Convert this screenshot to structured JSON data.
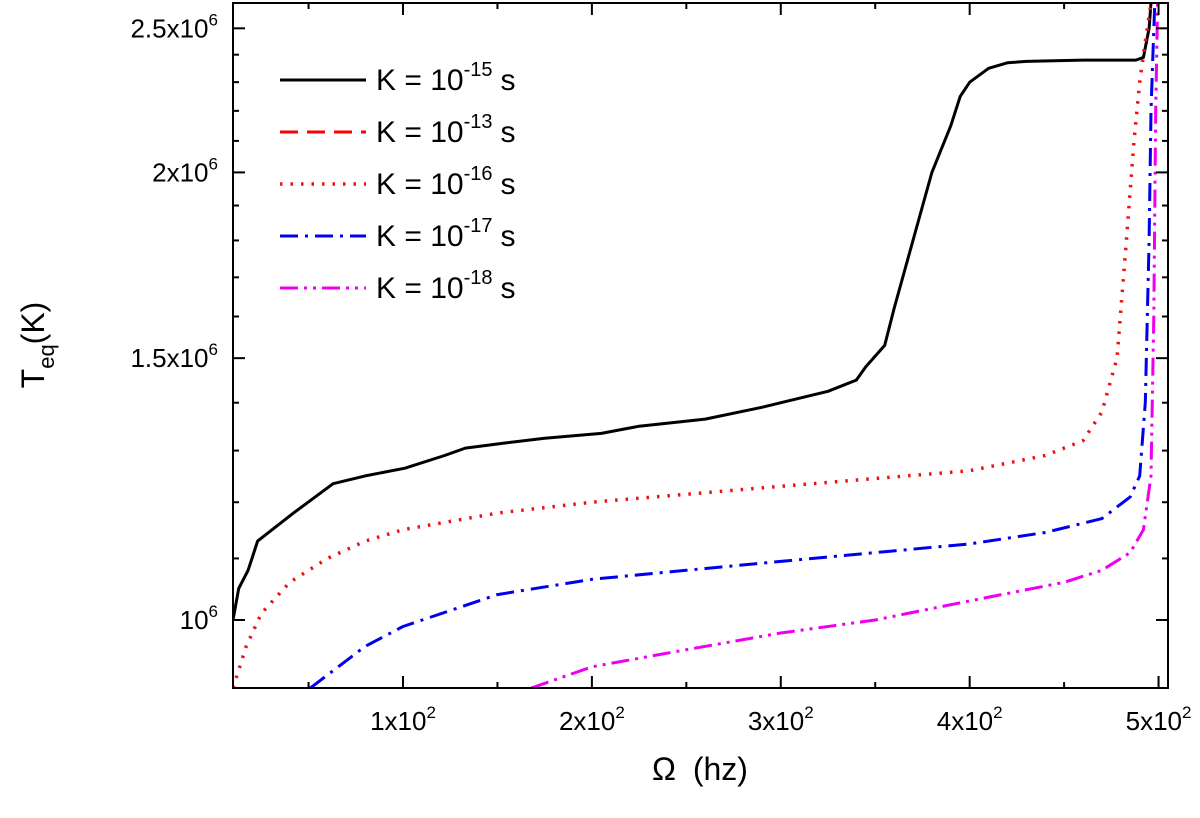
{
  "chart_data": {
    "type": "line",
    "xlabel": {
      "symbol": "Ω",
      "unit": "(hz)"
    },
    "ylabel": {
      "base": "T",
      "sub": "eq",
      "unit": "(K)"
    },
    "xlim": [
      10,
      505
    ],
    "ylim": [
      900000,
      2600000
    ],
    "x_ticks": [
      {
        "value": 100,
        "mantissa": "1x10",
        "exp": "2"
      },
      {
        "value": 200,
        "mantissa": "2x10",
        "exp": "2"
      },
      {
        "value": 300,
        "mantissa": "3x10",
        "exp": "2"
      },
      {
        "value": 400,
        "mantissa": "4x10",
        "exp": "2"
      },
      {
        "value": 500,
        "mantissa": "5x10",
        "exp": "2"
      }
    ],
    "y_ticks": [
      {
        "value": 1000000,
        "mantissa": "10",
        "exp": "6"
      },
      {
        "value": 1500000,
        "mantissa": "1.5x10",
        "exp": "6"
      },
      {
        "value": 2000000,
        "mantissa": "2x10",
        "exp": "6"
      },
      {
        "value": 2500000,
        "mantissa": "2.5x10",
        "exp": "6"
      }
    ],
    "series": [
      {
        "name": "K = 10^-15 s",
        "label_prefix": "K = 10",
        "label_exp": "-15",
        "label_suffix": "s",
        "color": "#000000",
        "dash": "",
        "width": 3,
        "x": [
          10,
          13,
          18,
          23,
          42,
          63,
          80,
          101,
          122,
          133,
          153,
          175,
          205,
          225,
          260,
          290,
          305,
          325,
          340,
          345,
          355,
          360,
          370,
          380,
          390,
          395,
          400,
          410,
          420,
          430,
          460,
          475,
          488,
          492,
          495,
          496
        ],
        "y": [
          1000000,
          1050000,
          1080000,
          1130000,
          1180000,
          1235000,
          1250000,
          1265000,
          1290000,
          1305000,
          1315000,
          1325000,
          1335000,
          1350000,
          1365000,
          1390000,
          1405000,
          1425000,
          1450000,
          1480000,
          1530000,
          1620000,
          1800000,
          2000000,
          2150000,
          2250000,
          2300000,
          2350000,
          2370000,
          2375000,
          2380000,
          2380000,
          2380000,
          2390000,
          2500000,
          2600000
        ]
      },
      {
        "name": "K = 10^-13 s",
        "label_prefix": "K = 10",
        "label_exp": "-13",
        "label_suffix": "s",
        "color": "#ff0000",
        "dash": "18,9",
        "width": 3,
        "x": [],
        "y": []
      },
      {
        "name": "K = 10^-16 s",
        "label_prefix": "K = 10",
        "label_exp": "-16",
        "label_suffix": "s",
        "color": "#ee1111",
        "dash": "2.5,8",
        "width": 3.5,
        "x": [
          10,
          17,
          25,
          40,
          60,
          80,
          100,
          150,
          200,
          300,
          350,
          400,
          440,
          460,
          470,
          478,
          483,
          487,
          490,
          492,
          494,
          496
        ],
        "y": [
          900000,
          960000,
          1010000,
          1060000,
          1100000,
          1130000,
          1150000,
          1180000,
          1200000,
          1230000,
          1245000,
          1260000,
          1290000,
          1320000,
          1380000,
          1500000,
          1800000,
          2100000,
          2300000,
          2400000,
          2500000,
          2600000
        ]
      },
      {
        "name": "K = 10^-17 s",
        "label_prefix": "K = 10",
        "label_exp": "-17",
        "label_suffix": "s",
        "color": "#0000ee",
        "dash": "18,7,3,7",
        "width": 3,
        "x": [
          51,
          80,
          100,
          150,
          200,
          250,
          300,
          350,
          400,
          440,
          470,
          485,
          490,
          493,
          495,
          496,
          497,
          498
        ],
        "y": [
          900000,
          960000,
          990000,
          1040000,
          1065000,
          1080000,
          1095000,
          1110000,
          1125000,
          1145000,
          1170000,
          1210000,
          1250000,
          1400000,
          1800000,
          2200000,
          2400000,
          2600000
        ]
      },
      {
        "name": "K = 10^-18 s",
        "label_prefix": "K = 10",
        "label_exp": "-18",
        "label_suffix": "s",
        "color": "#ee00ee",
        "dash": "18,6,3,6,3,6",
        "width": 3,
        "x": [
          168,
          200,
          250,
          300,
          350,
          400,
          450,
          470,
          485,
          492,
          496,
          497.5,
          498.5,
          499.5
        ],
        "y": [
          900000,
          930000,
          955000,
          980000,
          1000000,
          1030000,
          1060000,
          1080000,
          1110000,
          1150000,
          1250000,
          1600000,
          2200000,
          2600000
        ]
      }
    ],
    "legend_position": "top-left"
  }
}
